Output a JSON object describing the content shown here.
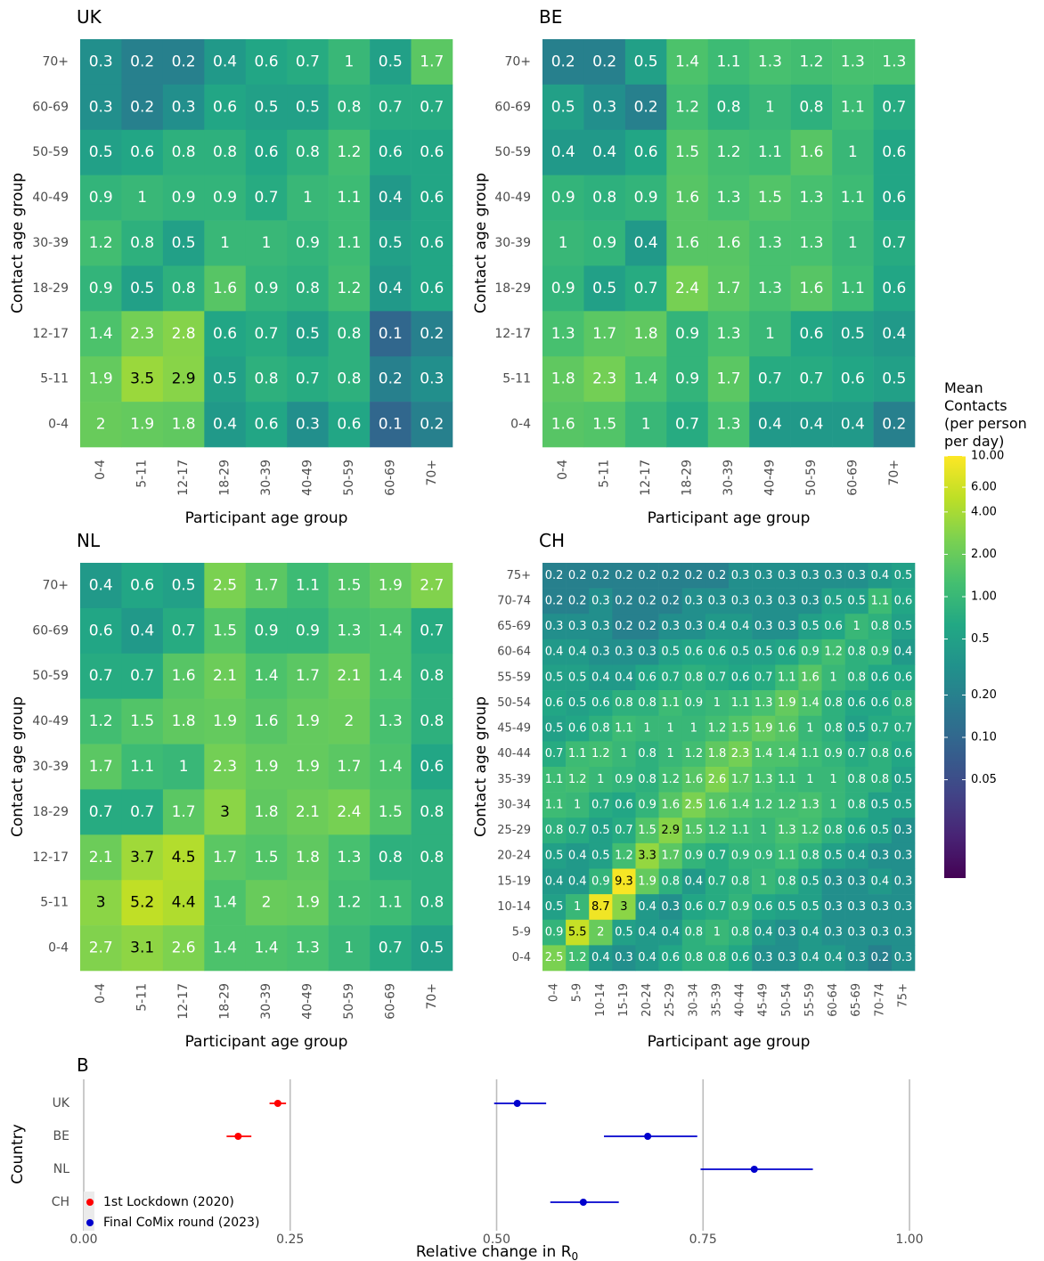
{
  "legend": {
    "title_lines": [
      "Mean",
      "Contacts",
      "(per person",
      "per day)"
    ],
    "ticks": [
      "10.00",
      "6.00",
      "4.00",
      "2.00",
      "1.00",
      "0.5",
      "0.20",
      "0.10",
      "0.05"
    ],
    "tick_values": [
      10,
      6,
      4,
      2,
      1,
      0.5,
      0.2,
      0.1,
      0.05
    ],
    "range": [
      0.01,
      10
    ]
  },
  "chart_data": [
    {
      "type": "heatmap",
      "title": "UK",
      "xlabel": "Participant age group",
      "ylabel": "Contact age group",
      "x_categories": [
        "0-4",
        "5-11",
        "12-17",
        "18-29",
        "30-39",
        "40-49",
        "50-59",
        "60-69",
        "70+"
      ],
      "y_categories": [
        "70+",
        "60-69",
        "50-59",
        "40-49",
        "30-39",
        "18-29",
        "12-17",
        "5-11",
        "0-4"
      ],
      "values": [
        [
          "0.3",
          "0.2",
          "0.2",
          "0.4",
          "0.6",
          "0.7",
          "1",
          "0.5",
          "1.7"
        ],
        [
          "0.3",
          "0.2",
          "0.3",
          "0.6",
          "0.5",
          "0.5",
          "0.8",
          "0.7",
          "0.7"
        ],
        [
          "0.5",
          "0.6",
          "0.8",
          "0.8",
          "0.6",
          "0.8",
          "1.2",
          "0.6",
          "0.6"
        ],
        [
          "0.9",
          "1",
          "0.9",
          "0.9",
          "0.7",
          "1",
          "1.1",
          "0.4",
          "0.6"
        ],
        [
          "1.2",
          "0.8",
          "0.5",
          "1",
          "1",
          "0.9",
          "1.1",
          "0.5",
          "0.6"
        ],
        [
          "0.9",
          "0.5",
          "0.8",
          "1.6",
          "0.9",
          "0.8",
          "1.2",
          "0.4",
          "0.6"
        ],
        [
          "1.4",
          "2.3",
          "2.8",
          "0.6",
          "0.7",
          "0.5",
          "0.8",
          "0.1",
          "0.2"
        ],
        [
          "1.9",
          "3.5",
          "2.9",
          "0.5",
          "0.8",
          "0.7",
          "0.8",
          "0.2",
          "0.3"
        ],
        [
          "2",
          "1.9",
          "1.8",
          "0.4",
          "0.6",
          "0.3",
          "0.6",
          "0.1",
          "0.2"
        ]
      ]
    },
    {
      "type": "heatmap",
      "title": "BE",
      "xlabel": "Participant age group",
      "ylabel": "Contact age group",
      "x_categories": [
        "0-4",
        "5-11",
        "12-17",
        "18-29",
        "30-39",
        "40-49",
        "50-59",
        "60-69",
        "70+"
      ],
      "y_categories": [
        "70+",
        "60-69",
        "50-59",
        "40-49",
        "30-39",
        "18-29",
        "12-17",
        "5-11",
        "0-4"
      ],
      "values": [
        [
          "0.2",
          "0.2",
          "0.5",
          "1.4",
          "1.1",
          "1.3",
          "1.2",
          "1.3",
          "1.3"
        ],
        [
          "0.5",
          "0.3",
          "0.2",
          "1.2",
          "0.8",
          "1",
          "0.8",
          "1.1",
          "0.7"
        ],
        [
          "0.4",
          "0.4",
          "0.6",
          "1.5",
          "1.2",
          "1.1",
          "1.6",
          "1",
          "0.6"
        ],
        [
          "0.9",
          "0.8",
          "0.9",
          "1.6",
          "1.3",
          "1.5",
          "1.3",
          "1.1",
          "0.6"
        ],
        [
          "1",
          "0.9",
          "0.4",
          "1.6",
          "1.6",
          "1.3",
          "1.3",
          "1",
          "0.7"
        ],
        [
          "0.9",
          "0.5",
          "0.7",
          "2.4",
          "1.7",
          "1.3",
          "1.6",
          "1.1",
          "0.6"
        ],
        [
          "1.3",
          "1.7",
          "1.8",
          "0.9",
          "1.3",
          "1",
          "0.6",
          "0.5",
          "0.4"
        ],
        [
          "1.8",
          "2.3",
          "1.4",
          "0.9",
          "1.7",
          "0.7",
          "0.7",
          "0.6",
          "0.5"
        ],
        [
          "1.6",
          "1.5",
          "1",
          "0.7",
          "1.3",
          "0.4",
          "0.4",
          "0.4",
          "0.2"
        ]
      ]
    },
    {
      "type": "heatmap",
      "title": "NL",
      "xlabel": "Participant age group",
      "ylabel": "Contact age group",
      "x_categories": [
        "0-4",
        "5-11",
        "12-17",
        "18-29",
        "30-39",
        "40-49",
        "50-59",
        "60-69",
        "70+"
      ],
      "y_categories": [
        "70+",
        "60-69",
        "50-59",
        "40-49",
        "30-39",
        "18-29",
        "12-17",
        "5-11",
        "0-4"
      ],
      "values": [
        [
          "0.4",
          "0.6",
          "0.5",
          "2.5",
          "1.7",
          "1.1",
          "1.5",
          "1.9",
          "2.7"
        ],
        [
          "0.6",
          "0.4",
          "0.7",
          "1.5",
          "0.9",
          "0.9",
          "1.3",
          "1.4",
          "0.7"
        ],
        [
          "0.7",
          "0.7",
          "1.6",
          "2.1",
          "1.4",
          "1.7",
          "2.1",
          "1.4",
          "0.8"
        ],
        [
          "1.2",
          "1.5",
          "1.8",
          "1.9",
          "1.6",
          "1.9",
          "2",
          "1.3",
          "0.8"
        ],
        [
          "1.7",
          "1.1",
          "1",
          "2.3",
          "1.9",
          "1.9",
          "1.7",
          "1.4",
          "0.6"
        ],
        [
          "0.7",
          "0.7",
          "1.7",
          "3",
          "1.8",
          "2.1",
          "2.4",
          "1.5",
          "0.8"
        ],
        [
          "2.1",
          "3.7",
          "4.5",
          "1.7",
          "1.5",
          "1.8",
          "1.3",
          "0.8",
          "0.8"
        ],
        [
          "3",
          "5.2",
          "4.4",
          "1.4",
          "2",
          "1.9",
          "1.2",
          "1.1",
          "0.8"
        ],
        [
          "2.7",
          "3.1",
          "2.6",
          "1.4",
          "1.4",
          "1.3",
          "1",
          "0.7",
          "0.5"
        ]
      ]
    },
    {
      "type": "heatmap",
      "title": "CH",
      "xlabel": "Participant age group",
      "ylabel": "Contact age group",
      "x_categories": [
        "0-4",
        "5-9",
        "10-14",
        "15-19",
        "20-24",
        "25-29",
        "30-34",
        "35-39",
        "40-44",
        "45-49",
        "50-54",
        "55-59",
        "60-64",
        "65-69",
        "70-74",
        "75+"
      ],
      "y_categories": [
        "75+",
        "70-74",
        "65-69",
        "60-64",
        "55-59",
        "50-54",
        "45-49",
        "40-44",
        "35-39",
        "30-34",
        "25-29",
        "20-24",
        "15-19",
        "10-14",
        "5-9",
        "0-4"
      ],
      "values": [
        [
          "0.2",
          "0.2",
          "0.2",
          "0.2",
          "0.2",
          "0.2",
          "0.2",
          "0.2",
          "0.3",
          "0.3",
          "0.3",
          "0.3",
          "0.3",
          "0.3",
          "0.4",
          "0.5"
        ],
        [
          "0.2",
          "0.2",
          "0.3",
          "0.2",
          "0.2",
          "0.2",
          "0.3",
          "0.3",
          "0.3",
          "0.3",
          "0.3",
          "0.3",
          "0.5",
          "0.5",
          "1.1",
          "0.6"
        ],
        [
          "0.3",
          "0.3",
          "0.3",
          "0.2",
          "0.2",
          "0.3",
          "0.3",
          "0.4",
          "0.4",
          "0.3",
          "0.3",
          "0.5",
          "0.6",
          "1",
          "0.8",
          "0.5"
        ],
        [
          "0.4",
          "0.4",
          "0.3",
          "0.3",
          "0.3",
          "0.5",
          "0.6",
          "0.6",
          "0.5",
          "0.5",
          "0.6",
          "0.9",
          "1.2",
          "0.8",
          "0.9",
          "0.4"
        ],
        [
          "0.5",
          "0.5",
          "0.4",
          "0.4",
          "0.6",
          "0.7",
          "0.8",
          "0.7",
          "0.6",
          "0.7",
          "1.1",
          "1.6",
          "1",
          "0.8",
          "0.6",
          "0.6"
        ],
        [
          "0.6",
          "0.5",
          "0.6",
          "0.8",
          "0.8",
          "1.1",
          "0.9",
          "1",
          "1.1",
          "1.3",
          "1.9",
          "1.4",
          "0.8",
          "0.6",
          "0.6",
          "0.8"
        ],
        [
          "0.5",
          "0.6",
          "0.8",
          "1.1",
          "1",
          "1",
          "1",
          "1.2",
          "1.5",
          "1.9",
          "1.6",
          "1",
          "0.8",
          "0.5",
          "0.7",
          "0.7"
        ],
        [
          "0.7",
          "1.1",
          "1.2",
          "1",
          "0.8",
          "1",
          "1.2",
          "1.8",
          "2.3",
          "1.4",
          "1.4",
          "1.1",
          "0.9",
          "0.7",
          "0.8",
          "0.6"
        ],
        [
          "1.1",
          "1.2",
          "1",
          "0.9",
          "0.8",
          "1.2",
          "1.6",
          "2.6",
          "1.7",
          "1.3",
          "1.1",
          "1",
          "1",
          "0.8",
          "0.8",
          "0.5"
        ],
        [
          "1.1",
          "1",
          "0.7",
          "0.6",
          "0.9",
          "1.6",
          "2.5",
          "1.6",
          "1.4",
          "1.2",
          "1.2",
          "1.3",
          "1",
          "0.8",
          "0.5",
          "0.5"
        ],
        [
          "0.8",
          "0.7",
          "0.5",
          "0.7",
          "1.5",
          "2.9",
          "1.5",
          "1.2",
          "1.1",
          "1",
          "1.3",
          "1.2",
          "0.8",
          "0.6",
          "0.5",
          "0.3"
        ],
        [
          "0.5",
          "0.4",
          "0.5",
          "1.2",
          "3.3",
          "1.7",
          "0.9",
          "0.7",
          "0.9",
          "0.9",
          "1.1",
          "0.8",
          "0.5",
          "0.4",
          "0.3",
          "0.3"
        ],
        [
          "0.4",
          "0.4",
          "0.9",
          "9.3",
          "1.9",
          "0.8",
          "0.4",
          "0.7",
          "0.8",
          "1",
          "0.8",
          "0.5",
          "0.3",
          "0.3",
          "0.4",
          "0.3"
        ],
        [
          "0.5",
          "1",
          "8.7",
          "3",
          "0.4",
          "0.3",
          "0.6",
          "0.7",
          "0.9",
          "0.6",
          "0.5",
          "0.5",
          "0.3",
          "0.3",
          "0.3",
          "0.3"
        ],
        [
          "0.9",
          "5.5",
          "2",
          "0.5",
          "0.4",
          "0.4",
          "0.8",
          "1",
          "0.8",
          "0.4",
          "0.3",
          "0.4",
          "0.3",
          "0.3",
          "0.3",
          "0.3"
        ],
        [
          "2.5",
          "1.2",
          "0.4",
          "0.3",
          "0.4",
          "0.6",
          "0.8",
          "0.8",
          "0.6",
          "0.3",
          "0.3",
          "0.4",
          "0.4",
          "0.3",
          "0.2",
          "0.3"
        ]
      ]
    },
    {
      "type": "scatter",
      "title": "B",
      "xlabel_main": "Relative change in R",
      "xlabel_sub": "0",
      "ylabel": "Country",
      "categories": [
        "UK",
        "BE",
        "NL",
        "CH"
      ],
      "xlim": [
        0,
        1.04
      ],
      "x_ticks": [
        0,
        0.25,
        0.5,
        0.75,
        1.0
      ],
      "x_tick_labels": [
        "0.00",
        "0.25",
        "0.50",
        "0.75",
        "1.00"
      ],
      "series": [
        {
          "name": "1st Lockdown (2020)",
          "color": "#ff0000",
          "points": [
            {
              "country": "UK",
              "x": 0.235,
              "lo": 0.225,
              "hi": 0.245
            },
            {
              "country": "BE",
              "x": 0.187,
              "lo": 0.173,
              "hi": 0.203
            }
          ]
        },
        {
          "name": "Final CoMix round (2023)",
          "color": "#0000cd",
          "points": [
            {
              "country": "UK",
              "x": 0.525,
              "lo": 0.497,
              "hi": 0.56
            },
            {
              "country": "BE",
              "x": 0.683,
              "lo": 0.63,
              "hi": 0.743
            },
            {
              "country": "NL",
              "x": 0.812,
              "lo": 0.747,
              "hi": 0.883
            },
            {
              "country": "CH",
              "x": 0.605,
              "lo": 0.565,
              "hi": 0.648
            }
          ]
        }
      ],
      "legend_position": "bottom-left"
    }
  ]
}
